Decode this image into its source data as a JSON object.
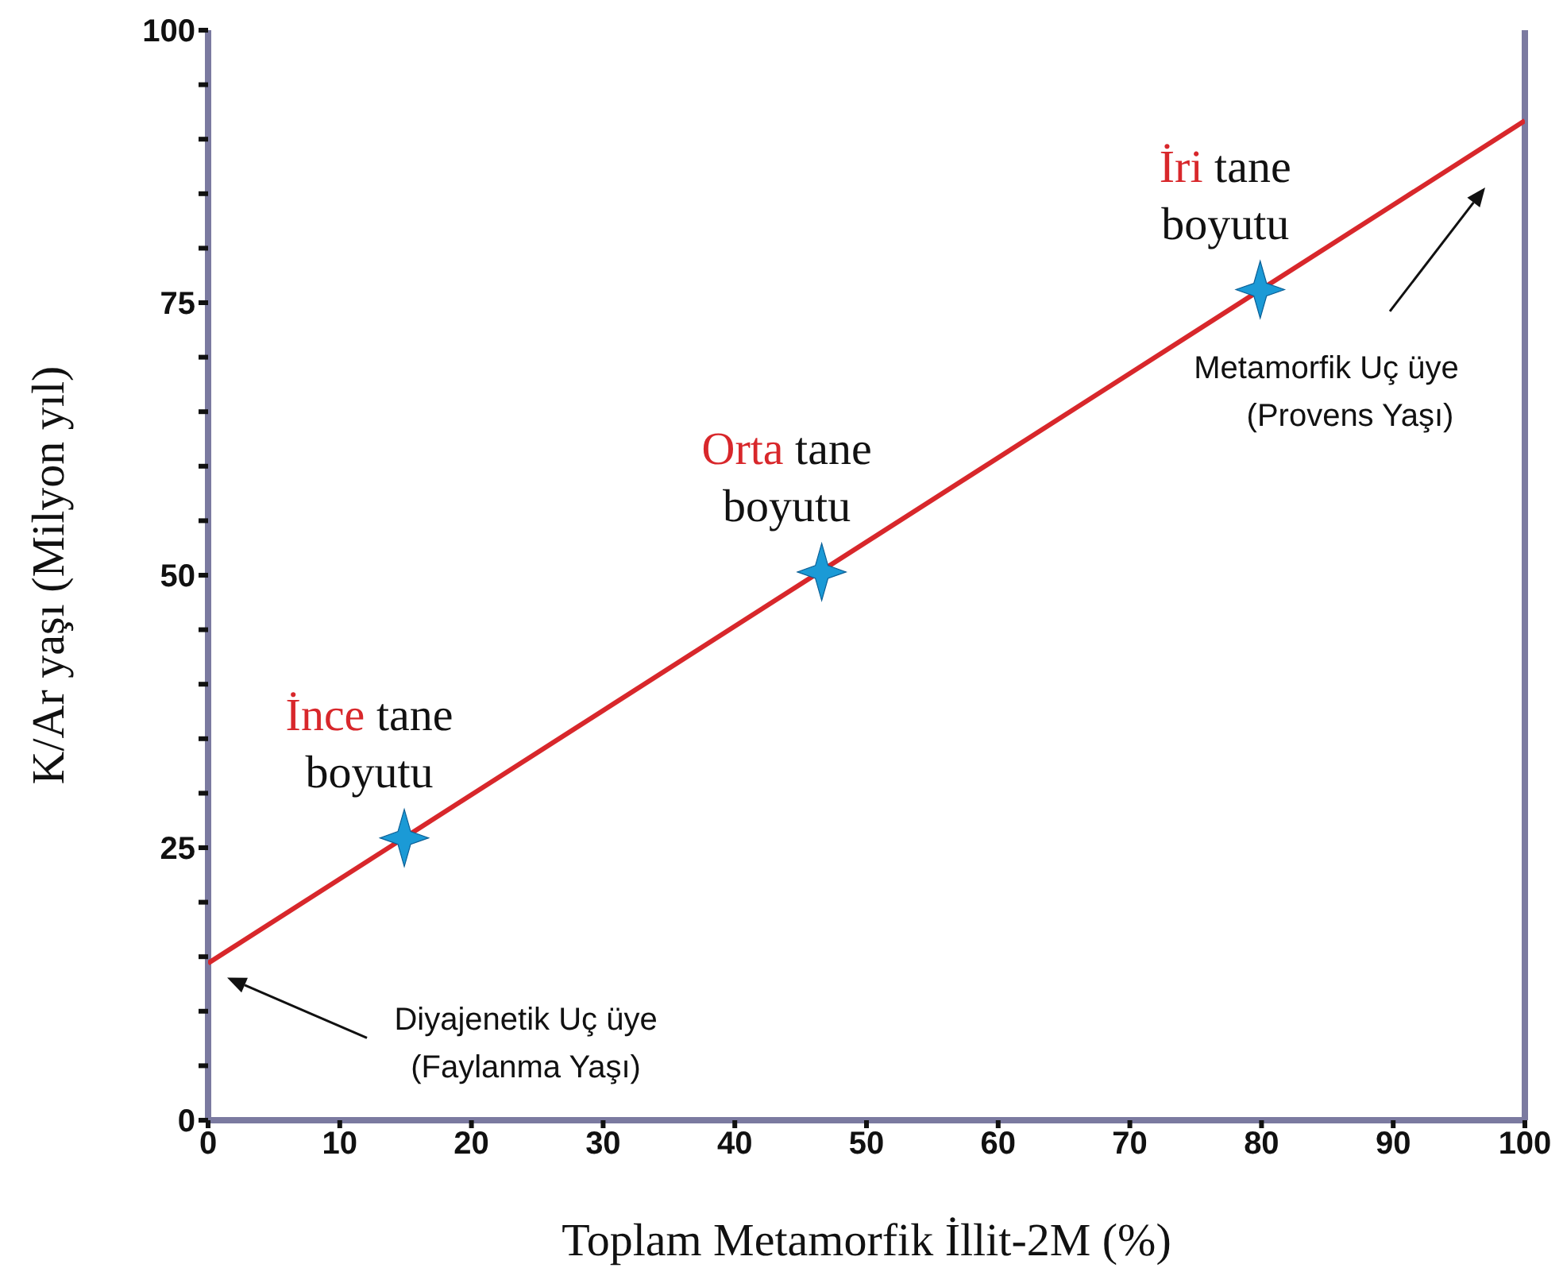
{
  "chart_data": {
    "type": "scatter",
    "xlabel": "Toplam Metamorfik İllit-2M (%)",
    "ylabel": "K/Ar yaşı (Milyon yıl)",
    "xlim": [
      0,
      100
    ],
    "xticks": [
      0,
      10,
      20,
      30,
      40,
      50,
      60,
      70,
      80,
      90,
      100
    ],
    "ylim": [
      0,
      100
    ],
    "yticks": [
      0,
      {
        "value": 5,
        "label": null
      },
      {
        "value": 10,
        "label": null
      },
      {
        "value": 15,
        "label": null
      },
      {
        "value": 20,
        "label": null
      },
      25,
      {
        "value": 30,
        "label": null
      },
      {
        "value": 35,
        "label": null
      },
      {
        "value": 40,
        "label": null
      },
      {
        "value": 45,
        "label": null
      },
      50,
      {
        "value": 55,
        "label": null
      },
      {
        "value": 60,
        "label": null
      },
      {
        "value": 65,
        "label": null
      },
      {
        "value": 70,
        "label": null
      },
      75,
      {
        "value": 80,
        "label": null
      },
      {
        "value": 85,
        "label": null
      },
      {
        "value": 90,
        "label": null
      },
      {
        "value": 95,
        "label": null
      },
      100
    ],
    "series": [
      {
        "type": "line",
        "color": "#d8272b",
        "x": [
          0,
          100
        ],
        "values": [
          14.4,
          91.7
        ],
        "marker": "none"
      },
      {
        "color": "#1b9ad6",
        "x": [
          14.9,
          46.6,
          79.9
        ],
        "values": [
          25.9,
          50.3,
          76.2
        ],
        "marker": "star"
      }
    ],
    "annotations": [
      {
        "text": "İnce tane boyutu",
        "x": 14.9,
        "y": 25.9
      },
      {
        "text": "Orta tane boyutu",
        "x": 46.6,
        "y": 50.3
      },
      {
        "text": "İri tane boyutu",
        "x": 79.9,
        "y": 76.2
      },
      "Diyajenetik Uç üye (Faylanma Yaşı)",
      "Metamorfik Uç üye (Provens Yaşı)"
    ]
  }
}
